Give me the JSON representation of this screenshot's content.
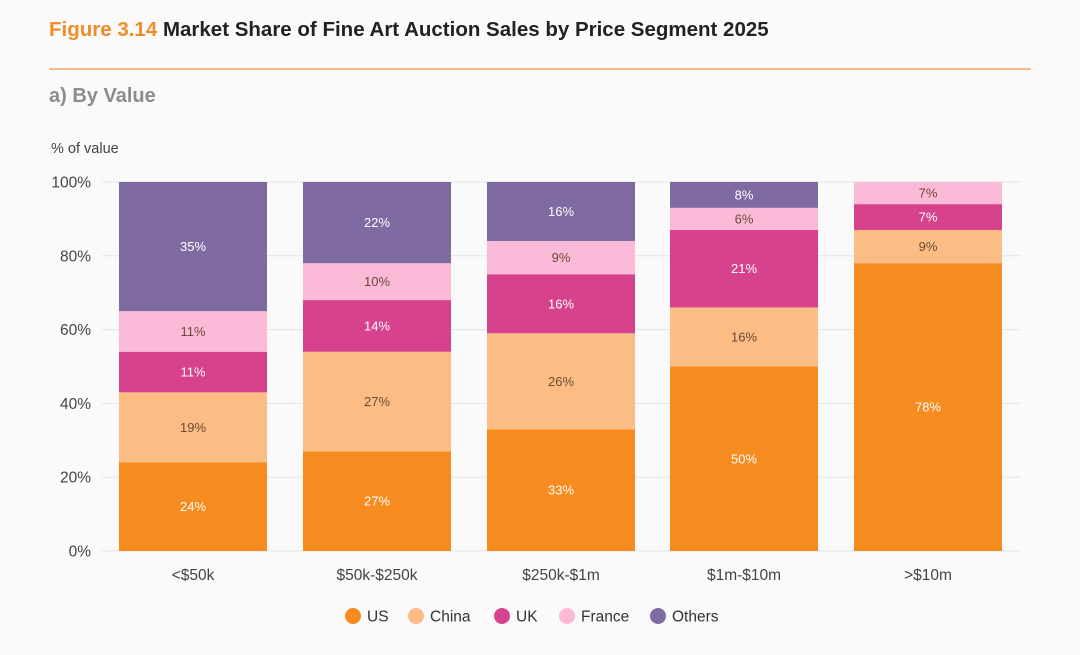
{
  "figure": {
    "number": "Figure 3.14",
    "title": "Market Share of Fine Art Auction Sales by Price Segment 2025",
    "subtitle": "a) By Value"
  },
  "chart_data": {
    "type": "bar",
    "stacked": true,
    "title": "Market Share of Fine Art Auction Sales by Price Segment 2025",
    "subtitle": "a) By Value",
    "ylabel": "% of value",
    "xlabel": "",
    "ylim": [
      0,
      100
    ],
    "yticks": [
      0,
      20,
      40,
      60,
      80,
      100
    ],
    "ytick_labels": [
      "0%",
      "20%",
      "40%",
      "60%",
      "80%",
      "100%"
    ],
    "grid": true,
    "legend_position": "bottom",
    "categories": [
      "<$50k",
      "$50k-$250k",
      "$250k-$1m",
      "$1m-$10m",
      ">$10m"
    ],
    "series": [
      {
        "name": "US",
        "color": "#f68b1f",
        "values": [
          24,
          27,
          33,
          50,
          78
        ]
      },
      {
        "name": "China",
        "color": "#fbbd84",
        "values": [
          19,
          27,
          26,
          16,
          9
        ]
      },
      {
        "name": "UK",
        "color": "#d6428b",
        "values": [
          11,
          14,
          16,
          21,
          7
        ]
      },
      {
        "name": "France",
        "color": "#fbbad8",
        "values": [
          11,
          10,
          9,
          6,
          7
        ]
      },
      {
        "name": "Others",
        "color": "#7f6aa1",
        "values": [
          35,
          22,
          16,
          8,
          null
        ]
      }
    ]
  }
}
